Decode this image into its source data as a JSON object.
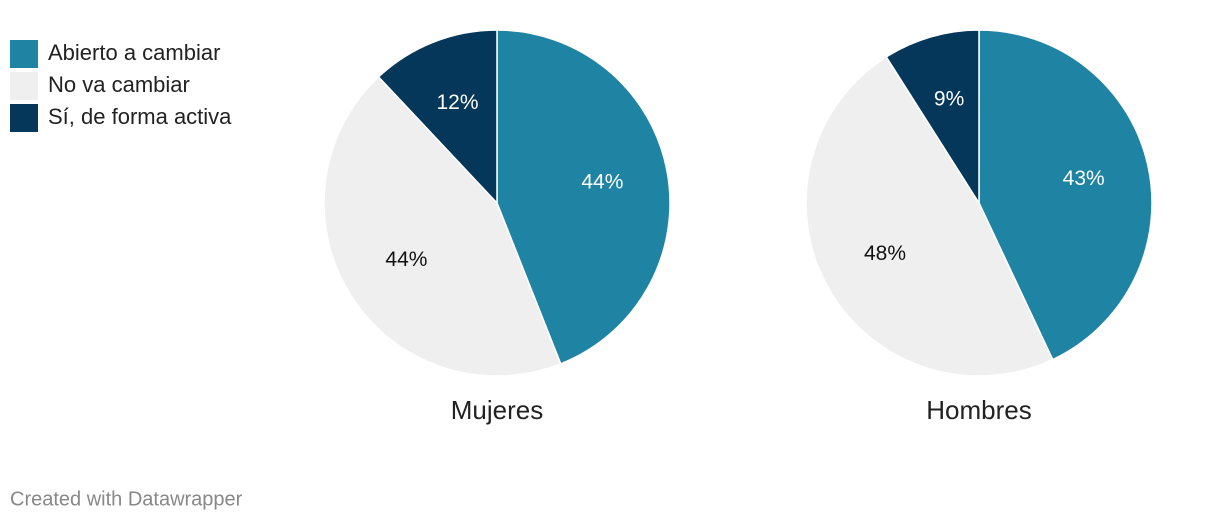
{
  "chart_data": [
    {
      "type": "pie",
      "title": "Mujeres",
      "categories": [
        "Abierto a cambiar",
        "No va cambiar",
        "Sí, de forma activa"
      ],
      "values": [
        44,
        44,
        12
      ],
      "value_labels": [
        "44%",
        "44%",
        "12%"
      ],
      "colors": [
        "#1f83a3",
        "#efefef",
        "#04375a"
      ]
    },
    {
      "type": "pie",
      "title": "Hombres",
      "categories": [
        "Abierto a cambiar",
        "No va cambiar",
        "Sí, de forma activa"
      ],
      "values": [
        43,
        48,
        9
      ],
      "value_labels": [
        "43%",
        "48%",
        "9%"
      ],
      "colors": [
        "#1f83a3",
        "#efefef",
        "#04375a"
      ]
    }
  ],
  "footer": "Created with Datawrapper"
}
